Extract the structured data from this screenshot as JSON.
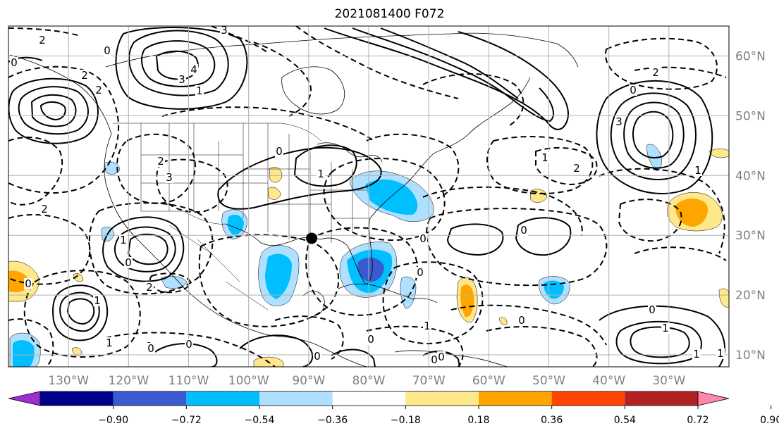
{
  "title": "2021081400 F072",
  "map": {
    "lon_ticks": [
      "130°W",
      "120°W",
      "110°W",
      "100°W",
      "90°W",
      "80°W",
      "70°W",
      "60°W",
      "50°W",
      "40°W",
      "30°W"
    ],
    "lat_ticks": [
      "60°N",
      "50°N",
      "40°N",
      "30°N",
      "20°N",
      "10°N"
    ],
    "marker": {
      "lon": -89.5,
      "lat": 29.5
    }
  },
  "colorbar": {
    "labels": [
      "−0.90",
      "−0.72",
      "−0.54",
      "−0.36",
      "−0.18",
      "0.18",
      "0.36",
      "0.54",
      "0.72",
      "0.90"
    ],
    "colors": [
      "#9b30d0",
      "#00008b",
      "#3a5bd0",
      "#00bfff",
      "#b0e0ff",
      "#ffffff",
      "#ffe88a",
      "#ffa500",
      "#ff4500",
      "#b22222",
      "#ff88aa"
    ]
  },
  "contour_labels": {
    "items": [
      "2",
      "2",
      "0",
      "0",
      "2",
      "3",
      "4",
      "3",
      "1",
      "2",
      "0",
      "1",
      "1",
      "0",
      "2",
      "0",
      "1",
      "1",
      "1",
      "0",
      "0",
      "0",
      "2",
      "2",
      "3",
      "0",
      "2",
      "1",
      "2",
      "0",
      "1",
      "3",
      "0",
      "1",
      "0",
      "1",
      "0",
      "1",
      "1",
      "0",
      "1",
      "0",
      "0",
      "0"
    ]
  }
}
